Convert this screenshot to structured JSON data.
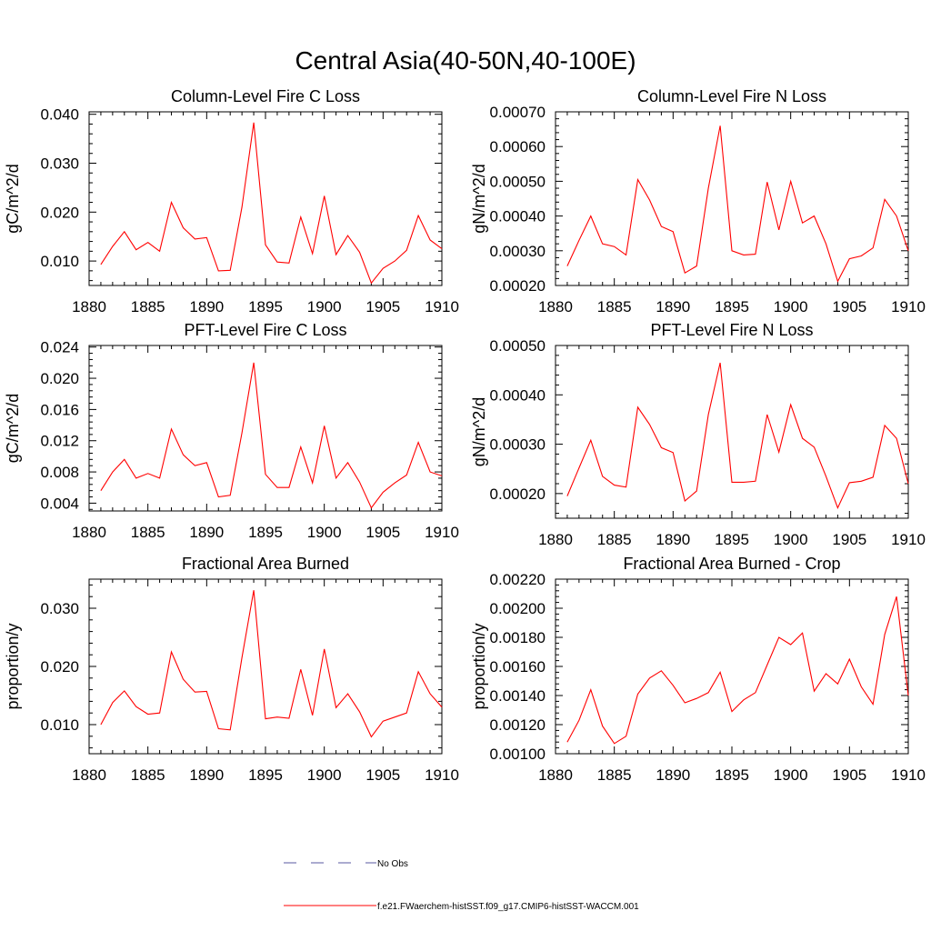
{
  "figure_title": "Central Asia(40-50N,40-100E)",
  "colors": {
    "model_line": "#ff0000",
    "obs_line": "#5a5aa0",
    "axis": "#000000"
  },
  "legend": {
    "obs_label": "No Obs",
    "model_label": "f.e21.FWaerchem-histSST.f09_g17.CMIP6-histSST-WACCM.001"
  },
  "chart_data": [
    {
      "type": "line",
      "title": "Column-Level Fire C Loss",
      "xlabel": "",
      "ylabel": "gC/m^2/d",
      "xlim": [
        1880,
        1910
      ],
      "ylim": [
        0.005,
        0.0405
      ],
      "yticks": [
        0.01,
        0.02,
        0.03,
        0.04
      ],
      "ytick_labels": [
        "0.010",
        "0.020",
        "0.030",
        "0.040"
      ],
      "xticks": [
        1880,
        1885,
        1890,
        1895,
        1900,
        1905,
        1910
      ],
      "grid": false,
      "x": [
        1881,
        1882,
        1883,
        1884,
        1885,
        1886,
        1887,
        1888,
        1889,
        1890,
        1891,
        1892,
        1893,
        1894,
        1895,
        1896,
        1897,
        1898,
        1899,
        1900,
        1901,
        1902,
        1903,
        1904,
        1905,
        1906,
        1907,
        1908,
        1909,
        1910
      ],
      "series": [
        {
          "values": [
            0.0093,
            0.013,
            0.016,
            0.0123,
            0.0138,
            0.012,
            0.022,
            0.0168,
            0.0145,
            0.0148,
            0.008,
            0.0081,
            0.021,
            0.0383,
            0.0133,
            0.0098,
            0.0096,
            0.019,
            0.0115,
            0.0233,
            0.0113,
            0.0152,
            0.0118,
            0.0055,
            0.0085,
            0.01,
            0.0122,
            0.0193,
            0.0143,
            0.0125
          ]
        }
      ]
    },
    {
      "type": "line",
      "title": "Column-Level Fire N Loss",
      "xlabel": "",
      "ylabel": "gN/m^2/d",
      "xlim": [
        1880,
        1910
      ],
      "ylim": [
        0.0002,
        0.0007
      ],
      "yticks": [
        0.0002,
        0.0003,
        0.0004,
        0.0005,
        0.0006,
        0.0007
      ],
      "ytick_labels": [
        "0.00020",
        "0.00030",
        "0.00040",
        "0.00050",
        "0.00060",
        "0.00070"
      ],
      "xticks": [
        1880,
        1885,
        1890,
        1895,
        1900,
        1905,
        1910
      ],
      "grid": false,
      "x": [
        1881,
        1882,
        1883,
        1884,
        1885,
        1886,
        1887,
        1888,
        1889,
        1890,
        1891,
        1892,
        1893,
        1894,
        1895,
        1896,
        1897,
        1898,
        1899,
        1900,
        1901,
        1902,
        1903,
        1904,
        1905,
        1906,
        1907,
        1908,
        1909,
        1910
      ],
      "series": [
        {
          "values": [
            0.000256,
            0.00033,
            0.0004,
            0.00032,
            0.000312,
            0.000288,
            0.000505,
            0.000446,
            0.00037,
            0.000355,
            0.000236,
            0.000256,
            0.00048,
            0.00066,
            0.0003,
            0.000288,
            0.00029,
            0.000498,
            0.00036,
            0.0005,
            0.00038,
            0.0004,
            0.00032,
            0.000212,
            0.000277,
            0.000285,
            0.000308,
            0.000448,
            0.0004,
            0.0003
          ]
        }
      ]
    },
    {
      "type": "line",
      "title": "PFT-Level Fire C Loss",
      "xlabel": "",
      "ylabel": "gC/m^2/d",
      "xlim": [
        1880,
        1910
      ],
      "ylim": [
        0.003,
        0.0242
      ],
      "yticks": [
        0.004,
        0.008,
        0.012,
        0.016,
        0.02,
        0.024
      ],
      "ytick_labels": [
        "0.004",
        "0.008",
        "0.012",
        "0.016",
        "0.020",
        "0.024"
      ],
      "xticks": [
        1880,
        1885,
        1890,
        1895,
        1900,
        1905,
        1910
      ],
      "grid": false,
      "x": [
        1881,
        1882,
        1883,
        1884,
        1885,
        1886,
        1887,
        1888,
        1889,
        1890,
        1891,
        1892,
        1893,
        1894,
        1895,
        1896,
        1897,
        1898,
        1899,
        1900,
        1901,
        1902,
        1903,
        1904,
        1905,
        1906,
        1907,
        1908,
        1909,
        1910
      ],
      "series": [
        {
          "values": [
            0.0056,
            0.008,
            0.0096,
            0.0072,
            0.0078,
            0.0072,
            0.0135,
            0.0102,
            0.0088,
            0.0092,
            0.0048,
            0.005,
            0.013,
            0.022,
            0.0077,
            0.006,
            0.006,
            0.0112,
            0.0066,
            0.0139,
            0.0072,
            0.0092,
            0.0067,
            0.0034,
            0.0054,
            0.0066,
            0.0076,
            0.0118,
            0.008,
            0.0075
          ]
        }
      ]
    },
    {
      "type": "line",
      "title": "PFT-Level Fire N Loss",
      "xlabel": "",
      "ylabel": "gN/m^2/d",
      "xlim": [
        1880,
        1910
      ],
      "ylim": [
        0.00015,
        0.0005
      ],
      "yticks": [
        0.0002,
        0.0003,
        0.0004,
        0.0005
      ],
      "ytick_labels": [
        "0.00020",
        "0.00030",
        "0.00040",
        "0.00050"
      ],
      "xticks": [
        1880,
        1885,
        1890,
        1895,
        1900,
        1905,
        1910
      ],
      "grid": false,
      "x": [
        1881,
        1882,
        1883,
        1884,
        1885,
        1886,
        1887,
        1888,
        1889,
        1890,
        1891,
        1892,
        1893,
        1894,
        1895,
        1896,
        1897,
        1898,
        1899,
        1900,
        1901,
        1902,
        1903,
        1904,
        1905,
        1906,
        1907,
        1908,
        1909,
        1910
      ],
      "series": [
        {
          "values": [
            0.000195,
            0.000252,
            0.000308,
            0.000235,
            0.000217,
            0.000213,
            0.000375,
            0.00034,
            0.000293,
            0.000283,
            0.000185,
            0.000205,
            0.00036,
            0.000465,
            0.000223,
            0.000223,
            0.000225,
            0.00036,
            0.000284,
            0.00038,
            0.000312,
            0.000294,
            0.000235,
            0.000171,
            0.000222,
            0.000225,
            0.000233,
            0.000338,
            0.000312,
            0.00022
          ]
        }
      ]
    },
    {
      "type": "line",
      "title": "Fractional Area Burned",
      "xlabel": "",
      "ylabel": "proportion/y",
      "xlim": [
        1880,
        1910
      ],
      "ylim": [
        0.005,
        0.035
      ],
      "yticks": [
        0.01,
        0.02,
        0.03
      ],
      "ytick_labels": [
        "0.010",
        "0.020",
        "0.030"
      ],
      "xticks": [
        1880,
        1885,
        1890,
        1895,
        1900,
        1905,
        1910
      ],
      "grid": false,
      "x": [
        1881,
        1882,
        1883,
        1884,
        1885,
        1886,
        1887,
        1888,
        1889,
        1890,
        1891,
        1892,
        1893,
        1894,
        1895,
        1896,
        1897,
        1898,
        1899,
        1900,
        1901,
        1902,
        1903,
        1904,
        1905,
        1906,
        1907,
        1908,
        1909,
        1910
      ],
      "series": [
        {
          "values": [
            0.01,
            0.0138,
            0.0158,
            0.0131,
            0.0118,
            0.012,
            0.0225,
            0.0178,
            0.0156,
            0.0157,
            0.0093,
            0.0091,
            0.0215,
            0.0331,
            0.011,
            0.0113,
            0.0111,
            0.0195,
            0.0116,
            0.023,
            0.0129,
            0.0153,
            0.0122,
            0.0079,
            0.0106,
            0.0113,
            0.012,
            0.0191,
            0.0153,
            0.013
          ]
        }
      ]
    },
    {
      "type": "line",
      "title": "Fractional Area Burned - Crop",
      "xlabel": "",
      "ylabel": "proportion/y",
      "xlim": [
        1880,
        1910
      ],
      "ylim": [
        0.001,
        0.0022
      ],
      "yticks": [
        0.001,
        0.0012,
        0.0014,
        0.0016,
        0.0018,
        0.002,
        0.0022
      ],
      "ytick_labels": [
        "0.00100",
        "0.00120",
        "0.00140",
        "0.00160",
        "0.00180",
        "0.00200",
        "0.00220"
      ],
      "xticks": [
        1880,
        1885,
        1890,
        1895,
        1900,
        1905,
        1910
      ],
      "grid": false,
      "x": [
        1881,
        1882,
        1883,
        1884,
        1885,
        1886,
        1887,
        1888,
        1889,
        1890,
        1891,
        1892,
        1893,
        1894,
        1895,
        1896,
        1897,
        1898,
        1899,
        1900,
        1901,
        1902,
        1903,
        1904,
        1905,
        1906,
        1907,
        1908,
        1909,
        1910
      ],
      "series": [
        {
          "values": [
            0.00108,
            0.00123,
            0.00144,
            0.00119,
            0.00107,
            0.00112,
            0.00141,
            0.00152,
            0.00157,
            0.00147,
            0.00135,
            0.00138,
            0.00142,
            0.00156,
            0.00129,
            0.00137,
            0.00142,
            0.00161,
            0.0018,
            0.00175,
            0.00183,
            0.00143,
            0.00155,
            0.00148,
            0.00165,
            0.00146,
            0.00134,
            0.00182,
            0.00208,
            0.0014
          ]
        }
      ]
    }
  ]
}
